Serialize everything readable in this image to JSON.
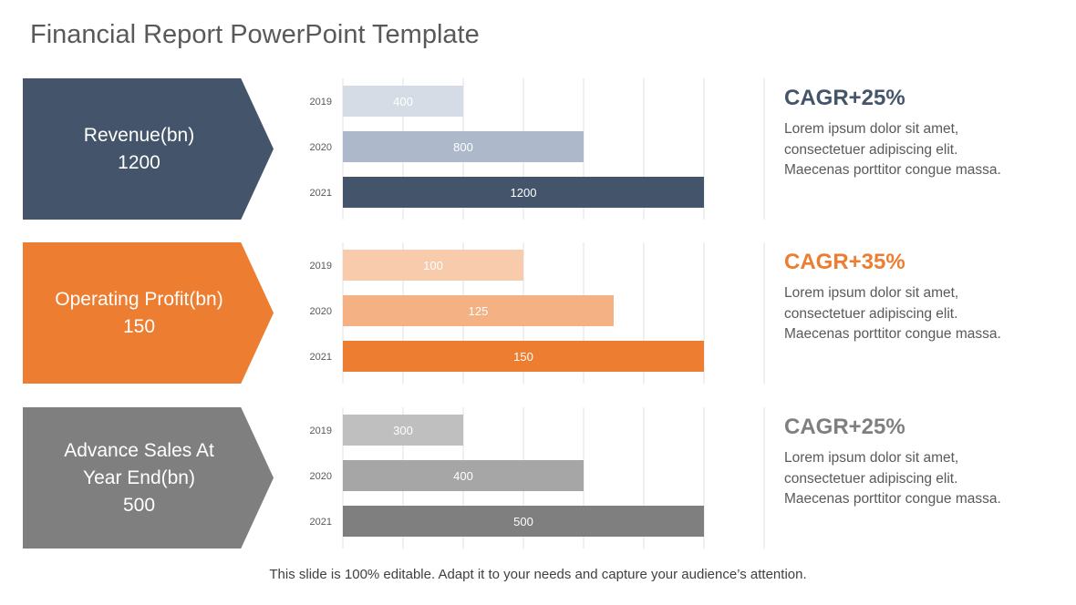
{
  "title": "Financial Report PowerPoint Template",
  "footer": "This slide is 100% editable. Adapt it to your needs and capture your audience’s attention.",
  "sections": [
    {
      "arrow_lines": [
        "Revenue(bn)",
        "1200"
      ],
      "cagr": "CAGR+25%",
      "desc_lines": [
        "Lorem ipsum dolor sit amet,",
        "consectetuer adipiscing elit.",
        "Maecenas porttitor congue massa."
      ],
      "colors": {
        "arrow": "#44546a",
        "cagr": "#44546a",
        "bars": [
          "#d6dce5",
          "#adb9ca",
          "#44546a"
        ]
      }
    },
    {
      "arrow_lines": [
        "Operating Profit(bn)",
        "150"
      ],
      "cagr": "CAGR+35%",
      "desc_lines": [
        "Lorem ipsum dolor sit amet,",
        "consectetuer adipiscing elit.",
        "Maecenas porttitor congue massa."
      ],
      "colors": {
        "arrow": "#ed7d31",
        "cagr": "#ed7d31",
        "bars": [
          "#f8cbad",
          "#f4b183",
          "#ed7d31"
        ]
      }
    },
    {
      "arrow_lines": [
        "Advance Sales At",
        "Year End(bn)",
        "500"
      ],
      "cagr": "CAGR+25%",
      "desc_lines": [
        "Lorem ipsum dolor sit amet,",
        "consectetuer adipiscing elit.",
        "Maecenas porttitor congue massa."
      ],
      "colors": {
        "arrow": "#7f7f7f",
        "cagr": "#7f7f7f",
        "bars": [
          "#bfbfbf",
          "#a6a6a6",
          "#7f7f7f"
        ]
      }
    }
  ],
  "chart_data": [
    {
      "type": "bar",
      "orientation": "horizontal",
      "categories": [
        "2019",
        "2020",
        "2021"
      ],
      "values": [
        400,
        800,
        1200
      ],
      "xlim": [
        0,
        1200
      ],
      "grid": true
    },
    {
      "type": "bar",
      "orientation": "horizontal",
      "categories": [
        "2019",
        "2020",
        "2021"
      ],
      "values": [
        100,
        125,
        150
      ],
      "xlim": [
        50,
        150
      ],
      "grid": true
    },
    {
      "type": "bar",
      "orientation": "horizontal",
      "categories": [
        "2019",
        "2020",
        "2021"
      ],
      "values": [
        300,
        400,
        500
      ],
      "xlim": [
        200,
        500
      ],
      "grid": true
    }
  ]
}
